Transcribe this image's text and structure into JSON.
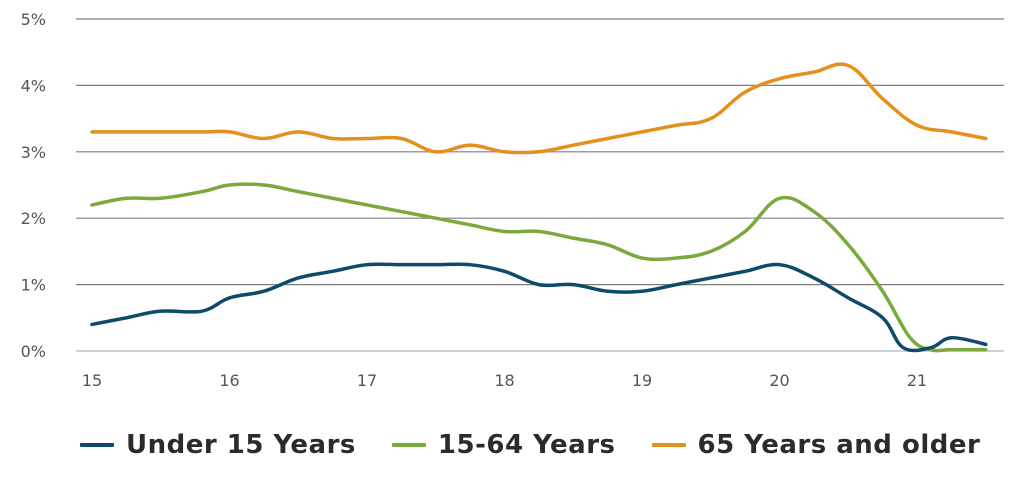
{
  "chart_data": {
    "type": "line",
    "x_ticks": [
      "15",
      "16",
      "17",
      "18",
      "19",
      "20",
      "21"
    ],
    "y_ticks": [
      "0%",
      "1%",
      "2%",
      "3%",
      "4%",
      "5%"
    ],
    "ylim": [
      0,
      5
    ],
    "xlim": [
      15,
      21.5
    ],
    "grid": true,
    "legend_position": "bottom",
    "series": [
      {
        "name": "Under 15 Years",
        "color": "#0d4a6b",
        "x": [
          15.0,
          15.25,
          15.5,
          15.8,
          16.0,
          16.25,
          16.5,
          16.75,
          17.0,
          17.25,
          17.5,
          17.75,
          18.0,
          18.25,
          18.5,
          18.75,
          19.0,
          19.25,
          19.5,
          19.75,
          20.0,
          20.25,
          20.5,
          20.75,
          20.9,
          21.1,
          21.25,
          21.5
        ],
        "values": [
          0.4,
          0.5,
          0.6,
          0.6,
          0.8,
          0.9,
          1.1,
          1.2,
          1.3,
          1.3,
          1.3,
          1.3,
          1.2,
          1.0,
          1.0,
          0.9,
          0.9,
          1.0,
          1.1,
          1.2,
          1.3,
          1.1,
          0.8,
          0.5,
          0.05,
          0.05,
          0.2,
          0.1
        ]
      },
      {
        "name": "15-64 Years",
        "color": "#7aaa3c",
        "x": [
          15.0,
          15.25,
          15.5,
          15.8,
          16.0,
          16.25,
          16.5,
          16.75,
          17.0,
          17.25,
          17.5,
          17.75,
          18.0,
          18.25,
          18.5,
          18.75,
          19.0,
          19.25,
          19.5,
          19.75,
          20.0,
          20.25,
          20.5,
          20.75,
          20.95,
          21.1,
          21.25,
          21.5
        ],
        "values": [
          2.2,
          2.3,
          2.3,
          2.4,
          2.5,
          2.5,
          2.4,
          2.3,
          2.2,
          2.1,
          2.0,
          1.9,
          1.8,
          1.8,
          1.7,
          1.6,
          1.4,
          1.4,
          1.5,
          1.8,
          2.3,
          2.1,
          1.6,
          0.9,
          0.2,
          0.02,
          0.02,
          0.02
        ]
      },
      {
        "name": "65 Years and older",
        "color": "#e3901e",
        "x": [
          15.0,
          15.25,
          15.5,
          15.8,
          16.0,
          16.25,
          16.5,
          16.75,
          17.0,
          17.25,
          17.5,
          17.75,
          18.0,
          18.25,
          18.5,
          18.75,
          19.0,
          19.25,
          19.5,
          19.75,
          20.0,
          20.25,
          20.5,
          20.75,
          21.0,
          21.25,
          21.5
        ],
        "values": [
          3.3,
          3.3,
          3.3,
          3.3,
          3.3,
          3.2,
          3.3,
          3.2,
          3.2,
          3.2,
          3.0,
          3.1,
          3.0,
          3.0,
          3.1,
          3.2,
          3.3,
          3.4,
          3.5,
          3.9,
          4.1,
          4.2,
          4.3,
          3.8,
          3.4,
          3.3,
          3.2
        ]
      }
    ]
  }
}
